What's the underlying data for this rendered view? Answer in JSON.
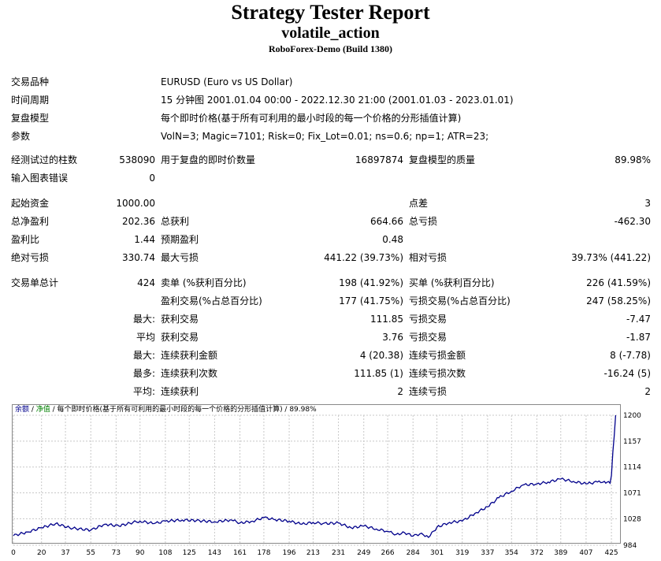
{
  "report": {
    "title": "Strategy Tester Report",
    "subtitle": "volatile_action",
    "server": "RoboForex-Demo (Build 1380)"
  },
  "settings": {
    "symbol_label": "交易品种",
    "symbol_value": "EURUSD (Euro vs US Dollar)",
    "period_label": "时间周期",
    "period_value": "15 分钟图 2001.01.04 00:00 - 2022.12.30 21:00 (2001.01.03 - 2023.01.01)",
    "model_label": "复盘模型",
    "model_value": "每个即时价格(基于所有可利用的最小时段的每一个价格的分形插值计算)",
    "params_label": "参数",
    "params_value": "VolN=3; Magic=7101; Risk=0; Fix_Lot=0.01; ns=0.6; np=1; ATR=23;"
  },
  "rows": {
    "bars_label": "经测试过的柱数",
    "bars_value": "538090",
    "ticks_label": "用于复盘的即时价数量",
    "ticks_value": "16897874",
    "quality_label": "复盘模型的质量",
    "quality_value": "89.98%",
    "errors_label": "输入图表错误",
    "errors_value": "0",
    "deposit_label": "起始资金",
    "deposit_value": "1000.00",
    "spread_label": "点差",
    "spread_value": "3",
    "net_label": "总净盈利",
    "net_value": "202.36",
    "gross_profit_label": "总获利",
    "gross_profit_value": "664.66",
    "gross_loss_label": "总亏损",
    "gross_loss_value": "-462.30",
    "pf_label": "盈利比",
    "pf_value": "1.44",
    "expected_label": "预期盈利",
    "expected_value": "0.48",
    "abs_dd_label": "绝对亏损",
    "abs_dd_value": "330.74",
    "max_dd_label": "最大亏损",
    "max_dd_value": "441.22 (39.73%)",
    "rel_dd_label": "相对亏损",
    "rel_dd_value": "39.73% (441.22)",
    "total_trades_label": "交易单总计",
    "total_trades_value": "424",
    "short_label": "卖单 (%获利百分比)",
    "short_value": "198 (41.92%)",
    "long_label": "买单 (%获利百分比)",
    "long_value": "226 (41.59%)",
    "profit_trades_label": "盈利交易(%占总百分比)",
    "profit_trades_value": "177 (41.75%)",
    "loss_trades_label": "亏损交易(%占总百分比)",
    "loss_trades_value": "247 (58.25%)",
    "largest_prefix": "最大:",
    "largest_profit_label": "获利交易",
    "largest_profit_value": "111.85",
    "largest_loss_label": "亏损交易",
    "largest_loss_value": "-7.47",
    "average_prefix": "平均",
    "average_profit_label": "获利交易",
    "average_profit_value": "3.76",
    "average_loss_label": "亏损交易",
    "average_loss_value": "-1.87",
    "max_prefix": "最大:",
    "max_cons_wins_label": "连续获利金额",
    "max_cons_wins_value": "4 (20.38)",
    "max_cons_losses_label": "连续亏损金额",
    "max_cons_losses_value": "8 (-7.78)",
    "most_prefix": "最多:",
    "most_cons_profit_label": "连续获利次数",
    "most_cons_profit_value": "111.85 (1)",
    "most_cons_loss_label": "连续亏损次数",
    "most_cons_loss_value": "-16.24 (5)",
    "avg_prefix": "平均:",
    "avg_cons_wins_label": "连续获利",
    "avg_cons_wins_value": "2",
    "avg_cons_losses_label": "连续亏损",
    "avg_cons_losses_value": "2"
  },
  "chart_legend": {
    "balance": "余额",
    "sep1": " / ",
    "equity": "净值",
    "rest": " / 每个即时价格(基于所有可利用的最小时段的每一个价格的分形插值计算) / 89.98%",
    "balance_color": "#00008b",
    "equity_color": "#008000"
  },
  "chart_data": {
    "type": "line",
    "x_ticks": [
      "0",
      "20",
      "37",
      "55",
      "73",
      "90",
      "108",
      "125",
      "143",
      "161",
      "178",
      "196",
      "213",
      "231",
      "249",
      "266",
      "284",
      "301",
      "319",
      "337",
      "354",
      "372",
      "389",
      "407",
      "425"
    ],
    "y_ticks": [
      "1200",
      "1157",
      "1114",
      "1071",
      "1028",
      "984"
    ],
    "ylim": [
      984,
      1200
    ],
    "xlim": [
      0,
      430
    ],
    "grid": true,
    "series": [
      {
        "color": "#00008b",
        "x": [
          0,
          10,
          20,
          30,
          40,
          55,
          65,
          75,
          85,
          90,
          100,
          108,
          120,
          130,
          143,
          155,
          161,
          170,
          178,
          185,
          196,
          205,
          213,
          220,
          231,
          240,
          249,
          258,
          266,
          272,
          278,
          284,
          290,
          295,
          301,
          310,
          319,
          328,
          337,
          345,
          354,
          362,
          372,
          380,
          389,
          398,
          407,
          415,
          420,
          424,
          425,
          426,
          427,
          428
        ],
        "y": [
          1000,
          1006,
          1013,
          1020,
          1013,
          1009,
          1019,
          1016,
          1022,
          1024,
          1020,
          1024,
          1026,
          1025,
          1023,
          1026,
          1021,
          1024,
          1030,
          1027,
          1024,
          1019,
          1022,
          1020,
          1021,
          1013,
          1016,
          1011,
          1007,
          1002,
          1005,
          999,
          1004,
          997,
          1014,
          1022,
          1024,
          1037,
          1048,
          1063,
          1074,
          1084,
          1086,
          1089,
          1094,
          1090,
          1086,
          1089,
          1090,
          1087,
          1100,
          1139,
          1165,
          1200
        ]
      }
    ]
  }
}
